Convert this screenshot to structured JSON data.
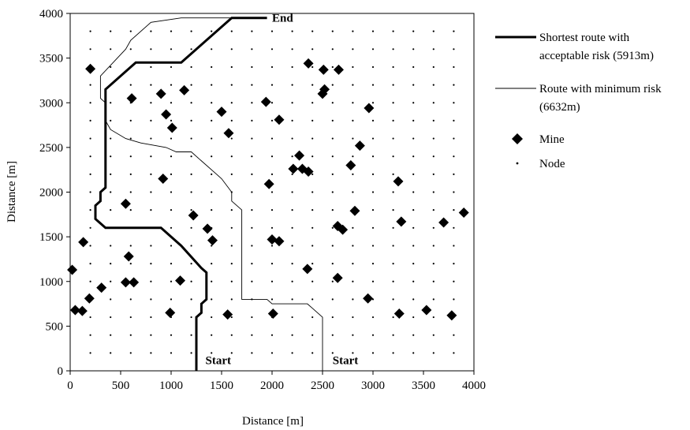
{
  "chart_data": {
    "type": "scatter",
    "xlabel": "Distance [m]",
    "ylabel": "Distance [m]",
    "xlim": [
      0,
      4000
    ],
    "ylim": [
      0,
      4000
    ],
    "xticks": [
      "0",
      "500",
      "1000",
      "1500",
      "2000",
      "2500",
      "3000",
      "3500",
      "4000"
    ],
    "yticks": [
      "0",
      "500",
      "1000",
      "1500",
      "2000",
      "2500",
      "3000",
      "3500",
      "4000"
    ],
    "grid": false,
    "legend_position": "right",
    "annotations": [
      {
        "text": "End",
        "x": 2000,
        "y": 3950
      },
      {
        "text": "Start",
        "x": 1340,
        "y": 120
      },
      {
        "text": "Start",
        "x": 2600,
        "y": 120
      }
    ],
    "series": [
      {
        "name": "Shortest route with acceptable risk (5913m)",
        "kind": "line",
        "stroke": "thick",
        "points": [
          [
            1250,
            0
          ],
          [
            1250,
            600
          ],
          [
            1300,
            650
          ],
          [
            1300,
            750
          ],
          [
            1350,
            800
          ],
          [
            1350,
            1100
          ],
          [
            1300,
            1150
          ],
          [
            1100,
            1400
          ],
          [
            1000,
            1500
          ],
          [
            900,
            1600
          ],
          [
            350,
            1600
          ],
          [
            300,
            1650
          ],
          [
            250,
            1700
          ],
          [
            250,
            1850
          ],
          [
            300,
            1900
          ],
          [
            300,
            2000
          ],
          [
            350,
            2050
          ],
          [
            350,
            3150
          ],
          [
            500,
            3300
          ],
          [
            650,
            3450
          ],
          [
            1100,
            3450
          ],
          [
            1600,
            3950
          ],
          [
            1950,
            3950
          ]
        ]
      },
      {
        "name": "Route with minimum risk (6632m)",
        "kind": "line",
        "stroke": "thin",
        "points": [
          [
            2500,
            0
          ],
          [
            2500,
            600
          ],
          [
            2400,
            700
          ],
          [
            2350,
            750
          ],
          [
            2000,
            750
          ],
          [
            1950,
            800
          ],
          [
            1700,
            800
          ],
          [
            1700,
            1800
          ],
          [
            1600,
            1900
          ],
          [
            1600,
            2000
          ],
          [
            1500,
            2150
          ],
          [
            1450,
            2200
          ],
          [
            1300,
            2350
          ],
          [
            1200,
            2450
          ],
          [
            1050,
            2450
          ],
          [
            950,
            2500
          ],
          [
            700,
            2550
          ],
          [
            550,
            2600
          ],
          [
            400,
            2700
          ],
          [
            350,
            2800
          ],
          [
            350,
            3000
          ],
          [
            300,
            3050
          ],
          [
            300,
            3300
          ],
          [
            550,
            3600
          ],
          [
            600,
            3700
          ],
          [
            800,
            3900
          ],
          [
            1100,
            3950
          ],
          [
            1650,
            3950
          ]
        ]
      },
      {
        "name": "Mine",
        "kind": "marker",
        "marker": "diamond",
        "points": [
          [
            200,
            3380
          ],
          [
            610,
            3050
          ],
          [
            900,
            3100
          ],
          [
            950,
            2870
          ],
          [
            1010,
            2720
          ],
          [
            1130,
            3140
          ],
          [
            1500,
            2900
          ],
          [
            1570,
            2660
          ],
          [
            1940,
            3010
          ],
          [
            2070,
            2810
          ],
          [
            2360,
            3440
          ],
          [
            2510,
            3370
          ],
          [
            2660,
            3370
          ],
          [
            2520,
            3150
          ],
          [
            2500,
            3100
          ],
          [
            2960,
            2940
          ],
          [
            2870,
            2520
          ],
          [
            2270,
            2410
          ],
          [
            2210,
            2260
          ],
          [
            2300,
            2260
          ],
          [
            2360,
            2230
          ],
          [
            2780,
            2300
          ],
          [
            1970,
            2090
          ],
          [
            920,
            2150
          ],
          [
            3250,
            2120
          ],
          [
            550,
            1870
          ],
          [
            1220,
            1740
          ],
          [
            2820,
            1790
          ],
          [
            3900,
            1770
          ],
          [
            3280,
            1670
          ],
          [
            3700,
            1660
          ],
          [
            1360,
            1590
          ],
          [
            1410,
            1460
          ],
          [
            2000,
            1470
          ],
          [
            2070,
            1450
          ],
          [
            2650,
            1620
          ],
          [
            2700,
            1580
          ],
          [
            130,
            1440
          ],
          [
            580,
            1280
          ],
          [
            20,
            1130
          ],
          [
            2350,
            1140
          ],
          [
            2650,
            1040
          ],
          [
            1090,
            1010
          ],
          [
            550,
            990
          ],
          [
            630,
            990
          ],
          [
            310,
            930
          ],
          [
            190,
            810
          ],
          [
            2950,
            810
          ],
          [
            50,
            680
          ],
          [
            120,
            670
          ],
          [
            990,
            650
          ],
          [
            1560,
            630
          ],
          [
            2010,
            640
          ],
          [
            3260,
            640
          ],
          [
            3530,
            680
          ],
          [
            3780,
            620
          ]
        ]
      },
      {
        "name": "Node",
        "kind": "marker",
        "marker": "dot",
        "spacing": 200,
        "range": [
          0,
          4000
        ]
      }
    ]
  },
  "legend": [
    {
      "label": "Shortest route with acceptable risk (5913m)",
      "symbol": "thick-line"
    },
    {
      "label": "Route with minimum risk (6632m)",
      "symbol": "thin-line"
    },
    {
      "label": "Mine",
      "symbol": "diamond"
    },
    {
      "label": "Node",
      "symbol": "dot"
    }
  ]
}
